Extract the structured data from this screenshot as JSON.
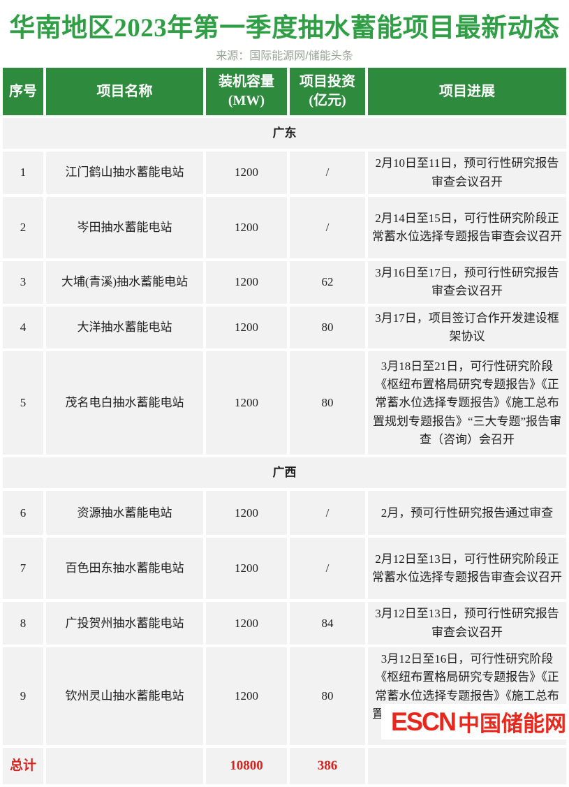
{
  "page": {
    "title": "华南地区2023年第一季度抽水蓄能项目最新动态",
    "source": "来源：国际能源网/储能头条"
  },
  "colors": {
    "title_green": "#2f9e45",
    "header_green": "#2e8b3e",
    "section_bg": "#ebf0dd",
    "cell_bg": "#f2f2f2",
    "total_red": "#d42620",
    "logo_red": "#e8271d"
  },
  "table": {
    "headers": [
      {
        "label": "序号",
        "sub": ""
      },
      {
        "label": "项目名称",
        "sub": ""
      },
      {
        "label": "装机容量",
        "sub": "(MW)"
      },
      {
        "label": "项目投资",
        "sub": "(亿元)"
      },
      {
        "label": "项目进展",
        "sub": ""
      }
    ],
    "sections": [
      {
        "name": "广东",
        "rows": [
          {
            "no": "1",
            "name": "江门鹤山抽水蓄能电站",
            "capacity": "1200",
            "investment": "/",
            "progress": "2月10日至11日，预可行性研究报告审查会议召开"
          },
          {
            "no": "2",
            "name": "岑田抽水蓄能电站",
            "capacity": "1200",
            "investment": "/",
            "progress": "2月14日至15日，可行性研究阶段正常蓄水位选择专题报告审查会议召开"
          },
          {
            "no": "3",
            "name": "大埔(青溪)抽水蓄能电站",
            "capacity": "1200",
            "investment": "62",
            "progress": "3月16日至17日，预可行性研究报告审查会议召开"
          },
          {
            "no": "4",
            "name": "大洋抽水蓄能电站",
            "capacity": "1200",
            "investment": "80",
            "progress": "3月17日，项目签订合作开发建设框架协议"
          },
          {
            "no": "5",
            "name": "茂名电白抽水蓄能电站",
            "capacity": "1200",
            "investment": "80",
            "progress": "3月18日至21日，可行性研究阶段《枢纽布置格局研究专题报告》《正常蓄水位选择专题报告》《施工总布置规划专题报告》“三大专题”报告审查（咨询）会召开"
          }
        ]
      },
      {
        "name": "广西",
        "rows": [
          {
            "no": "6",
            "name": "资源抽水蓄能电站",
            "capacity": "1200",
            "investment": "/",
            "progress": "2月，预可行性研究报告通过审查"
          },
          {
            "no": "7",
            "name": "百色田东抽水蓄能电站",
            "capacity": "1200",
            "investment": "/",
            "progress": "2月12日至13日，可行性研究阶段正常蓄水位选择专题报告审查会议召开"
          },
          {
            "no": "8",
            "name": "广投贺州抽水蓄能电站",
            "capacity": "1200",
            "investment": "84",
            "progress": "3月12日至13日，预可行性研究报告审查会议召开"
          },
          {
            "no": "9",
            "name": "钦州灵山抽水蓄能电站",
            "capacity": "1200",
            "investment": "80",
            "progress": "3月12日至16日，可行性研究阶段《枢纽布置格局研究专题报告》《正常蓄水位选择专题报告》《施工总布置规划专题报告》三大专题报告审查会议召开"
          }
        ]
      }
    ],
    "total": {
      "label": "总计",
      "name": "",
      "capacity": "10800",
      "investment": "386",
      "progress": ""
    }
  },
  "logo": {
    "escn": "ESCN",
    "name": "中国储能网"
  }
}
